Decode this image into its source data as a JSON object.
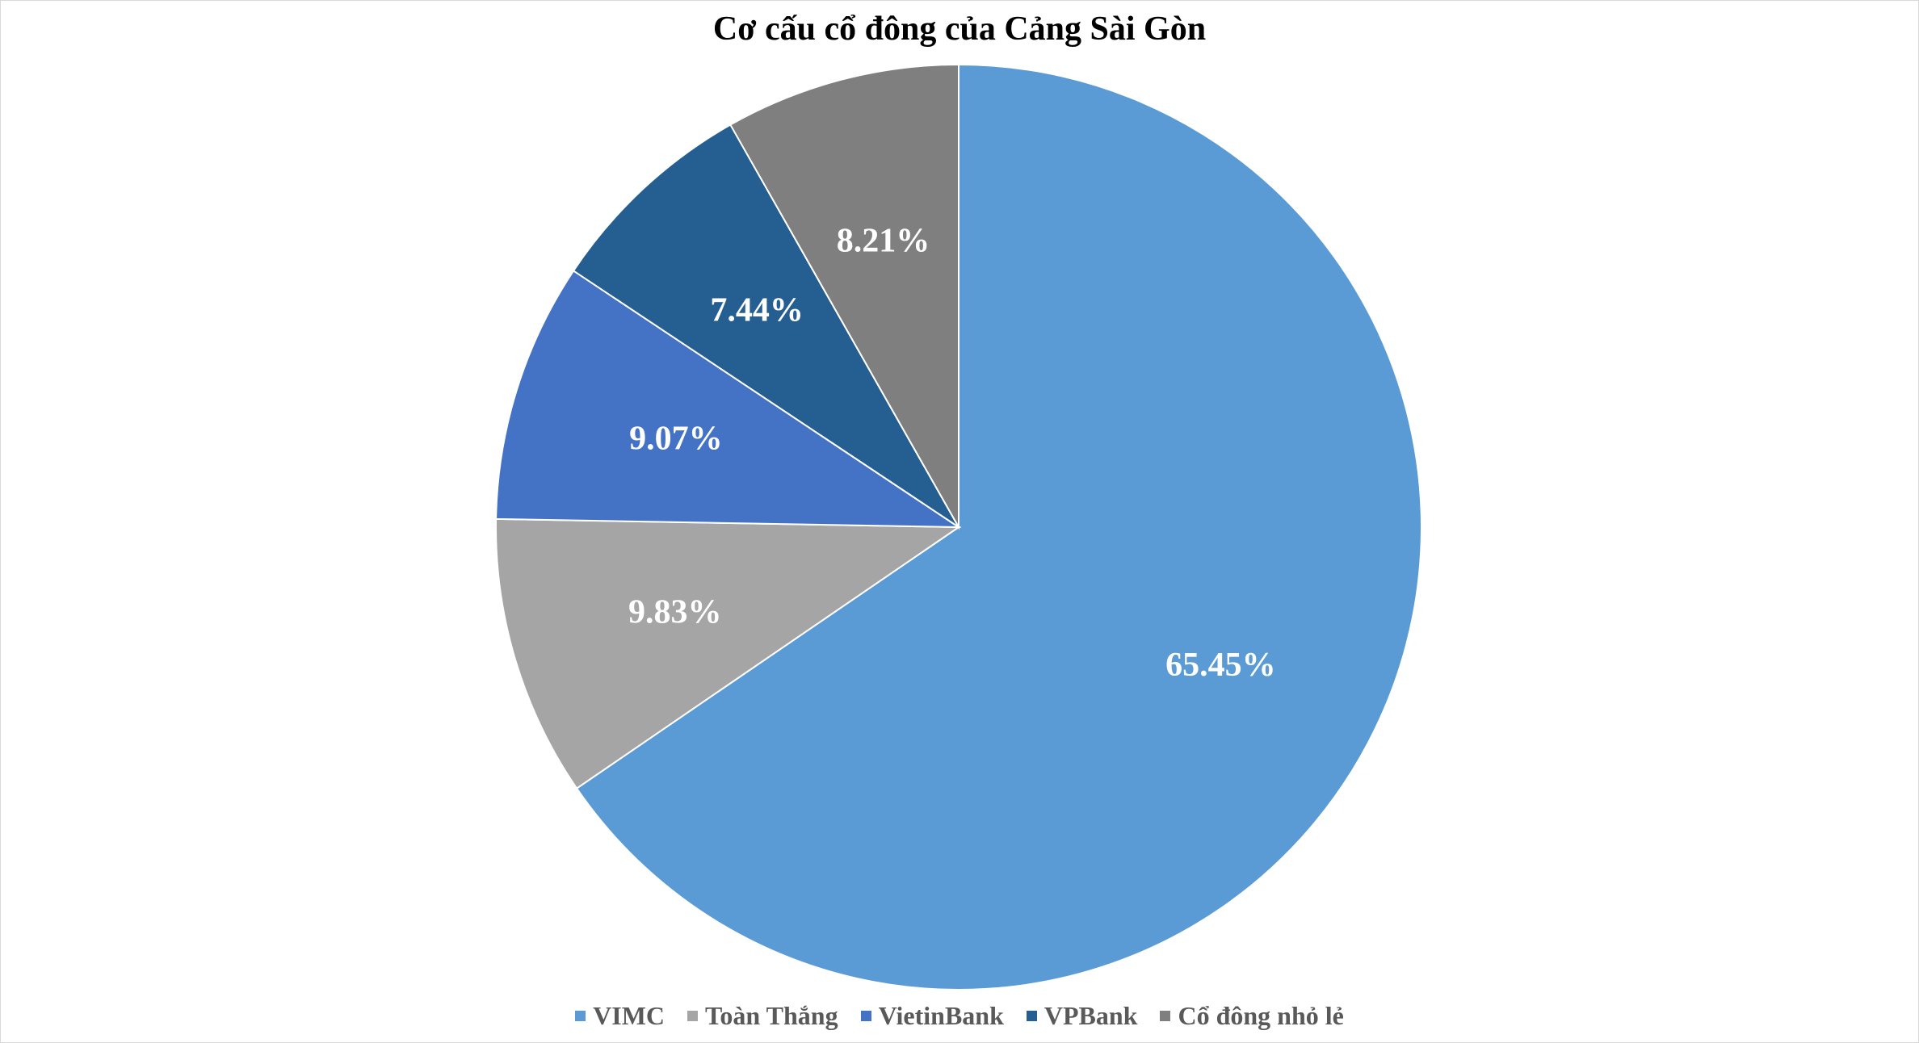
{
  "chart_data": {
    "type": "pie",
    "title": "Cơ cấu cổ đông của Cảng Sài Gòn",
    "categories": [
      "VIMC",
      "Toàn Thắng",
      "VietinBank",
      "VPBank",
      "Cổ đông nhỏ lẻ"
    ],
    "values": [
      65.45,
      9.83,
      9.07,
      7.44,
      8.21
    ],
    "data_labels": [
      "65.45%",
      "9.83%",
      "9.07%",
      "7.44%",
      "8.21%"
    ],
    "colors": [
      "#5b9bd5",
      "#a5a5a5",
      "#4472c4",
      "#255e91",
      "#7f7f7f"
    ],
    "start": "12 o'clock",
    "direction": "clockwise",
    "legend_position": "bottom",
    "slice_border_color": "#ffffff"
  }
}
